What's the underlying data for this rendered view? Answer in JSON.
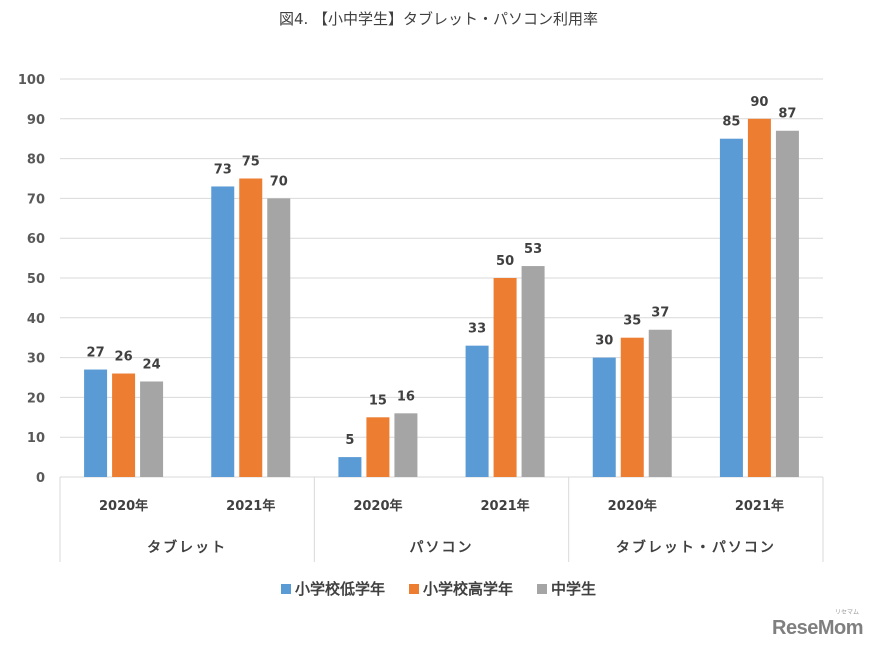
{
  "chart_data": {
    "type": "bar",
    "title": "図4. 【小中学生】タブレット・パソコン利用率",
    "xlabel": "",
    "ylabel": "",
    "ylim": [
      0,
      100
    ],
    "yticks": [
      0,
      10,
      20,
      30,
      40,
      50,
      60,
      70,
      80,
      90,
      100
    ],
    "grid": true,
    "legend_position": "bottom",
    "groups": [
      "タブレット",
      "パソコン",
      "タブレット・パソコン"
    ],
    "categories": [
      "2020年",
      "2021年",
      "2020年",
      "2021年",
      "2020年",
      "2021年"
    ],
    "series": [
      {
        "name": "小学校低学年",
        "color": "#5b9bd5",
        "values": [
          27,
          73,
          5,
          33,
          30,
          85
        ]
      },
      {
        "name": "小学校高学年",
        "color": "#ed7d31",
        "values": [
          26,
          75,
          15,
          50,
          35,
          90
        ]
      },
      {
        "name": "中学生",
        "color": "#a5a5a5",
        "values": [
          24,
          70,
          16,
          53,
          37,
          87
        ]
      }
    ]
  },
  "watermark": {
    "text": "ReseMom",
    "sub": "リセマム"
  }
}
